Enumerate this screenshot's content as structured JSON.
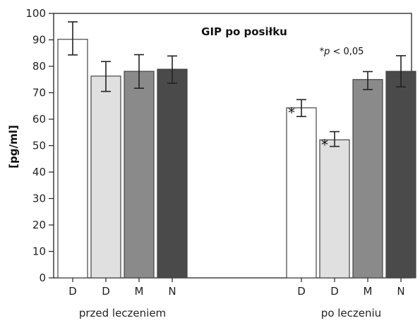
{
  "chart_data": {
    "type": "bar",
    "title": "GIP po posiłku",
    "ylabel": "[pg/ml]",
    "xlabel": "",
    "ylim": [
      0,
      100
    ],
    "yticks": [
      0,
      10,
      20,
      30,
      40,
      50,
      60,
      70,
      80,
      90,
      100
    ],
    "grid": false,
    "note": {
      "prefix": "*",
      "italic": "p",
      "rest": " < 0,05"
    },
    "colors": [
      "#ffffff",
      "#e0e0e0",
      "#8a8a8a",
      "#4a4a4a"
    ],
    "groups": [
      {
        "label": "przed leczeniem",
        "bars": [
          {
            "category": "D",
            "value": 90.2,
            "err_low": 84.3,
            "err_high": 96.8,
            "significant": false
          },
          {
            "category": "D",
            "value": 76.3,
            "err_low": 70.5,
            "err_high": 81.8,
            "significant": false
          },
          {
            "category": "M",
            "value": 78.1,
            "err_low": 71.7,
            "err_high": 84.4,
            "significant": false
          },
          {
            "category": "N",
            "value": 78.9,
            "err_low": 73.6,
            "err_high": 83.9,
            "significant": false
          }
        ]
      },
      {
        "label": "po leczeniu",
        "bars": [
          {
            "category": "D",
            "value": 64.3,
            "err_low": 61.0,
            "err_high": 67.4,
            "significant": true
          },
          {
            "category": "D",
            "value": 52.2,
            "err_low": 49.7,
            "err_high": 55.3,
            "significant": true
          },
          {
            "category": "M",
            "value": 75.0,
            "err_low": 71.2,
            "err_high": 78.0,
            "significant": false
          },
          {
            "category": "N",
            "value": 78.1,
            "err_low": 72.2,
            "err_high": 84.0,
            "significant": false
          }
        ]
      }
    ],
    "significance_marker": "*"
  }
}
